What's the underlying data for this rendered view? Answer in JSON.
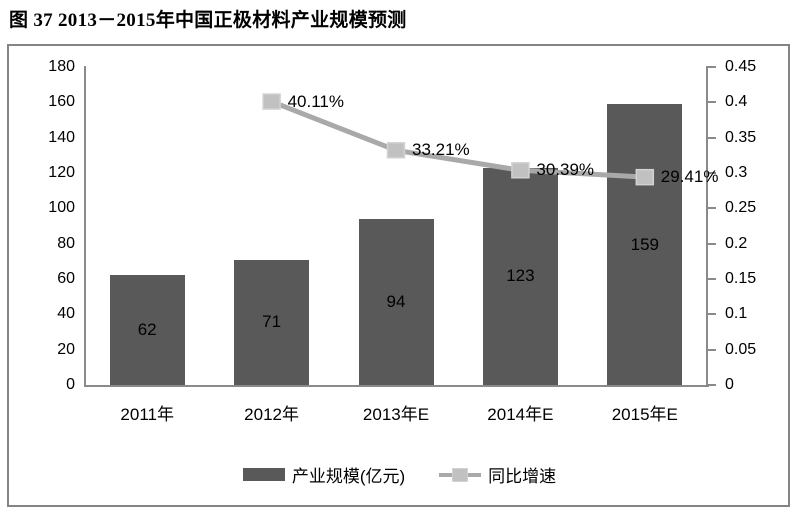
{
  "title": "图 37 2013－2015年中国正极材料产业规模预测",
  "legend": {
    "bar_label": "产业规模(亿元)",
    "line_label": "同比增速"
  },
  "colors": {
    "bar": "#595959",
    "line": "#a9a9a9",
    "marker_fill": "#c1c1c1",
    "marker_stroke": "#d2d2d2",
    "axis": "#8a8a8a",
    "frame": "#848484",
    "text": "#000000"
  },
  "chart_data": {
    "type": "bar",
    "subtype": "bar+line dual axis",
    "title": "图 37 2013－2015年中国正极材料产业规模预测",
    "categories": [
      "2011年",
      "2012年",
      "2013年E",
      "2014年E",
      "2015年E"
    ],
    "series": [
      {
        "name": "产业规模(亿元)",
        "type": "bar",
        "axis": "left",
        "values": [
          62,
          71,
          94,
          123,
          159
        ],
        "value_labels": [
          "62",
          "71",
          "94",
          "123",
          "159"
        ]
      },
      {
        "name": "同比增速",
        "type": "line",
        "axis": "right",
        "values": [
          null,
          0.4011,
          0.3321,
          0.3039,
          0.2941
        ],
        "value_labels": [
          null,
          "40.11%",
          "33.21%",
          "30.39%",
          "29.41%"
        ]
      }
    ],
    "left_axis": {
      "min": 0,
      "max": 180,
      "step": 20,
      "ticks": [
        "0",
        "20",
        "40",
        "60",
        "80",
        "100",
        "120",
        "140",
        "160",
        "180"
      ]
    },
    "right_axis": {
      "min": 0,
      "max": 0.45,
      "step": 0.05,
      "ticks": [
        "0",
        "0.05",
        "0.1",
        "0.15",
        "0.2",
        "0.25",
        "0.3",
        "0.35",
        "0.4",
        "0.45"
      ]
    },
    "grid": false,
    "legend_position": "bottom"
  }
}
